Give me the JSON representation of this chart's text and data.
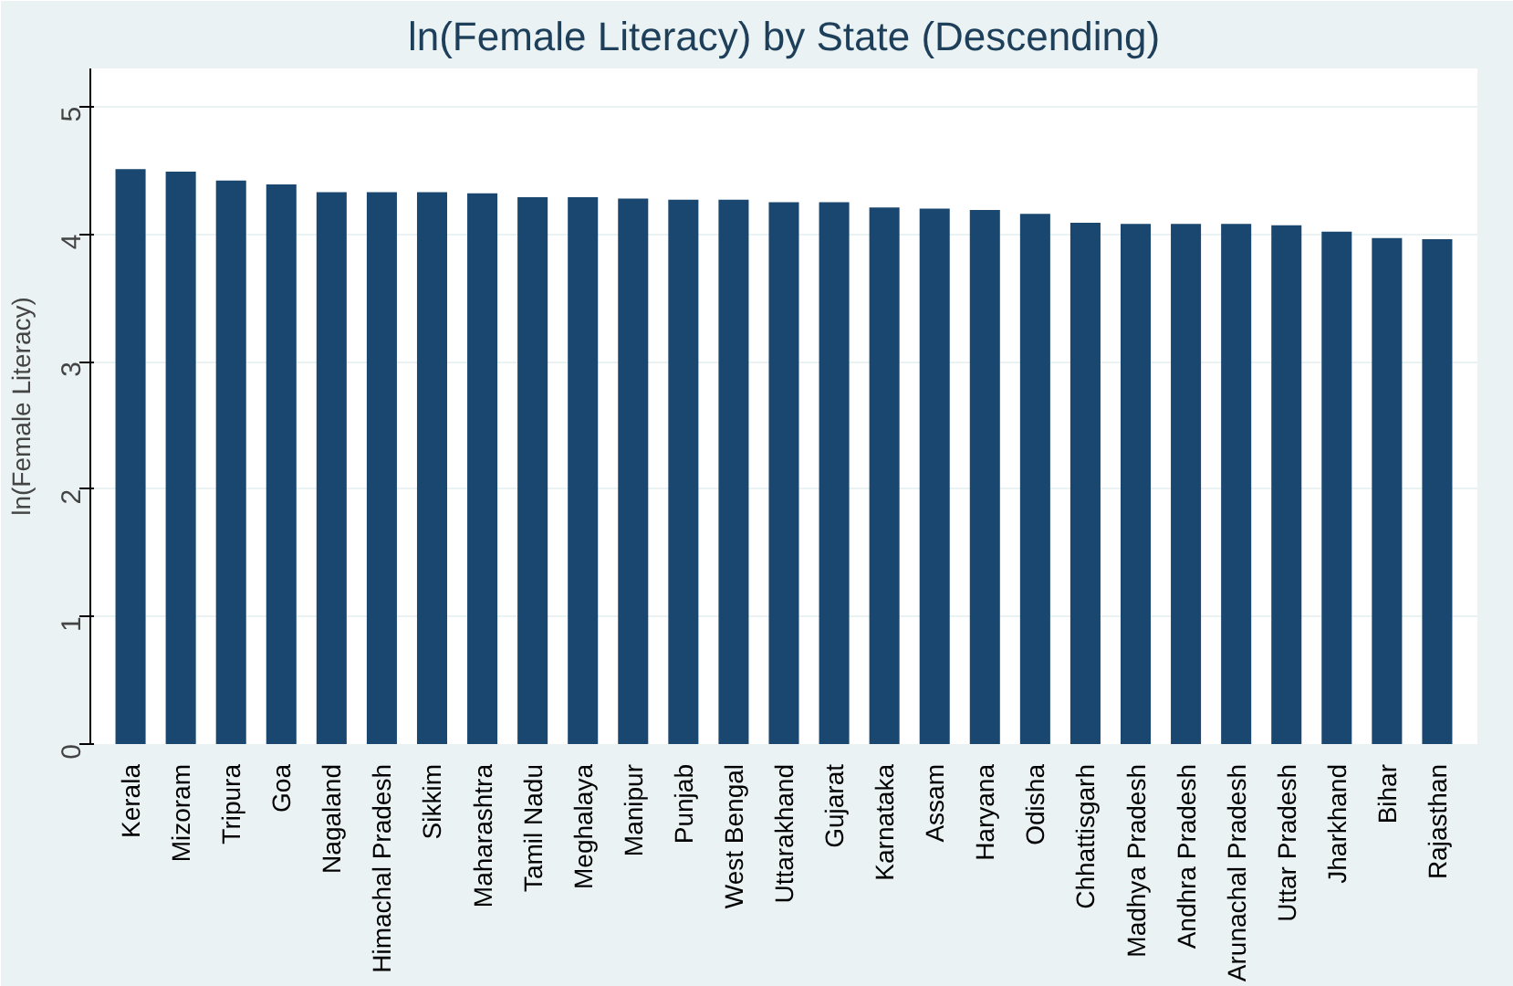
{
  "chart_data": {
    "type": "bar",
    "title": "ln(Female Literacy) by State (Descending)",
    "ylabel": "ln(Female Literacy)",
    "categories": [
      "Kerala",
      "Mizoram",
      "Tripura",
      "Goa",
      "Nagaland",
      "Himachal Pradesh",
      "Sikkim",
      "Maharashtra",
      "Tamil Nadu",
      "Meghalaya",
      "Manipur",
      "Punjab",
      "West Bengal",
      "Uttarakhand",
      "Gujarat",
      "Karnataka",
      "Assam",
      "Haryana",
      "Odisha",
      "Chhattisgarh",
      "Madhya Pradesh",
      "Andhra Pradesh",
      "Arunachal Pradesh",
      "Uttar Pradesh",
      "Jharkhand",
      "Bihar",
      "Rajasthan"
    ],
    "values": [
      4.51,
      4.49,
      4.42,
      4.39,
      4.33,
      4.33,
      4.33,
      4.32,
      4.29,
      4.29,
      4.28,
      4.27,
      4.27,
      4.25,
      4.25,
      4.21,
      4.2,
      4.19,
      4.16,
      4.09,
      4.08,
      4.08,
      4.08,
      4.07,
      4.02,
      3.97,
      3.96
    ],
    "color": "#1a476f",
    "ylim": [
      0,
      5.3
    ],
    "yticks": [
      0,
      1,
      2,
      3,
      4,
      5
    ],
    "grid": "y"
  }
}
